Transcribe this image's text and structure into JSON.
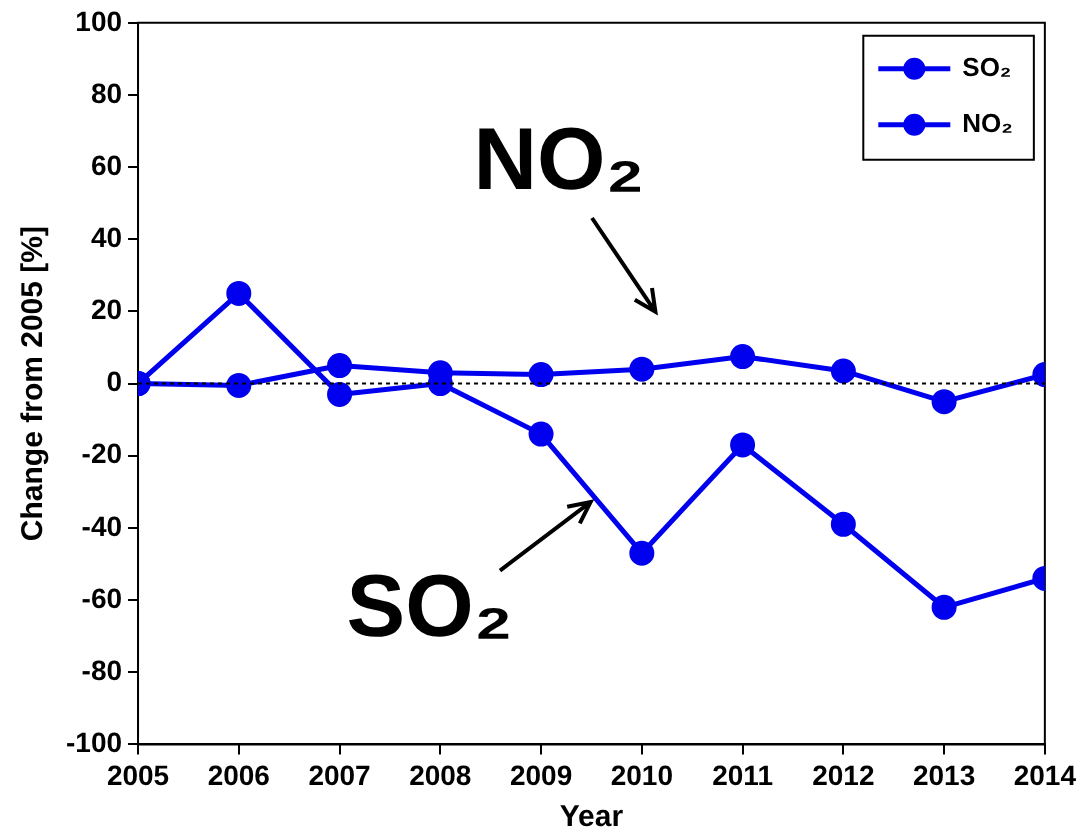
{
  "chart_data": {
    "type": "line",
    "xlabel": "Year",
    "ylabel": "Change from 2005 [%]",
    "x": [
      2005,
      2006,
      2007,
      2008,
      2009,
      2010,
      2011,
      2012,
      2013,
      2014
    ],
    "series": [
      {
        "name": "SO₂",
        "color": "#0000ee",
        "values": [
          0,
          25,
          -3,
          0,
          -14,
          -47,
          -17,
          -39,
          -62,
          -54
        ]
      },
      {
        "name": "NO₂",
        "color": "#0000ee",
        "values": [
          0,
          -0.5,
          5,
          3,
          2.5,
          4,
          7.5,
          3.5,
          -5,
          2.5
        ]
      }
    ],
    "xlim": [
      2005,
      2014
    ],
    "xticks": [
      2005,
      2006,
      2007,
      2008,
      2009,
      2010,
      2011,
      2012,
      2013,
      2014
    ],
    "ylim": [
      -100,
      100
    ],
    "yticks": [
      -100,
      -80,
      -60,
      -40,
      -20,
      0,
      20,
      40,
      60,
      80,
      100
    ],
    "ref_lines": [
      {
        "axis": "y",
        "value": 0,
        "color": "#000000",
        "line_style": "dotted"
      }
    ],
    "annotations": [
      "NO₂",
      "SO₂"
    ],
    "grid": false,
    "legend": "top right",
    "marker": "circle",
    "line_style": "solid"
  }
}
